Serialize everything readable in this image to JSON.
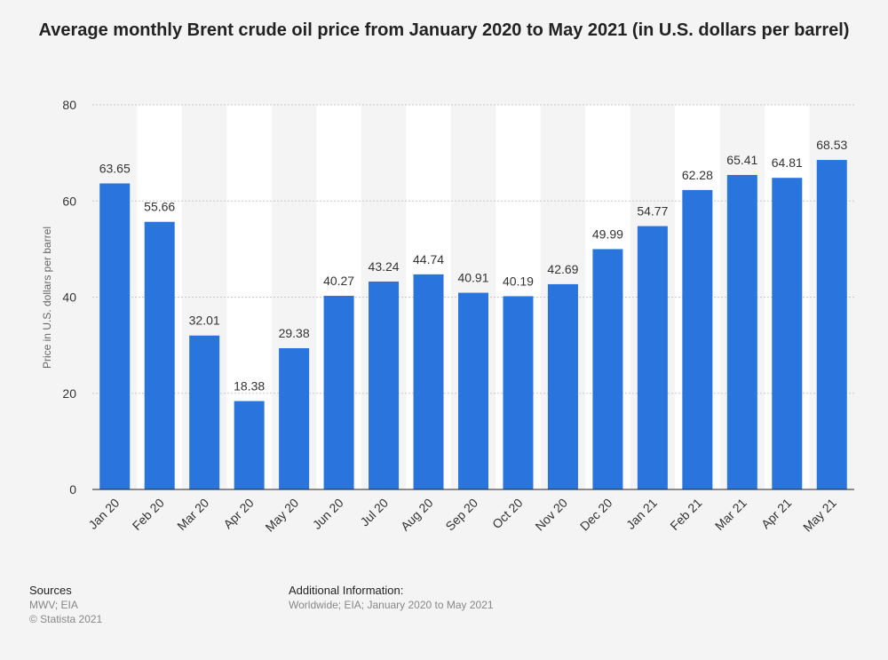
{
  "title": "Average monthly Brent crude oil price from January 2020 to May 2021 (in U.S. dollars per barrel)",
  "sources": {
    "heading": "Sources",
    "line1": "MWV; EIA",
    "line2": "© Statista 2021"
  },
  "additional_info": {
    "heading": "Additional Information:",
    "text": "Worldwide; EIA; January 2020 to May 2021"
  },
  "colors": {
    "bar": "#2a74dd",
    "background": "#f4f4f4",
    "alt_band": "#ffffff",
    "grid": "#c8c8c8"
  },
  "chart_data": {
    "type": "bar",
    "title": "Average monthly Brent crude oil price from January 2020 to May 2021 (in U.S. dollars per barrel)",
    "xlabel": "",
    "ylabel": "Price in U.S. dollars per barrel",
    "ylim": [
      0,
      80
    ],
    "yticks": [
      0,
      20,
      40,
      60,
      80
    ],
    "grid": true,
    "categories": [
      "Jan 20",
      "Feb 20",
      "Mar 20",
      "Apr 20",
      "May 20",
      "Jun 20",
      "Jul 20",
      "Aug 20",
      "Sep 20",
      "Oct 20",
      "Nov 20",
      "Dec 20",
      "Jan 21",
      "Feb 21",
      "Mar 21",
      "Apr 21",
      "May 21"
    ],
    "values": [
      63.65,
      55.66,
      32.01,
      18.38,
      29.38,
      40.27,
      43.24,
      44.74,
      40.91,
      40.19,
      42.69,
      49.99,
      54.77,
      62.28,
      65.41,
      64.81,
      68.53
    ],
    "data_labels": [
      "63.65",
      "55.66",
      "32.01",
      "18.38",
      "29.38",
      "40.27",
      "43.24",
      "44.74",
      "40.91",
      "40.19",
      "42.69",
      "49.99",
      "54.77",
      "62.28",
      "65.41",
      "64.81",
      "68.53"
    ]
  }
}
